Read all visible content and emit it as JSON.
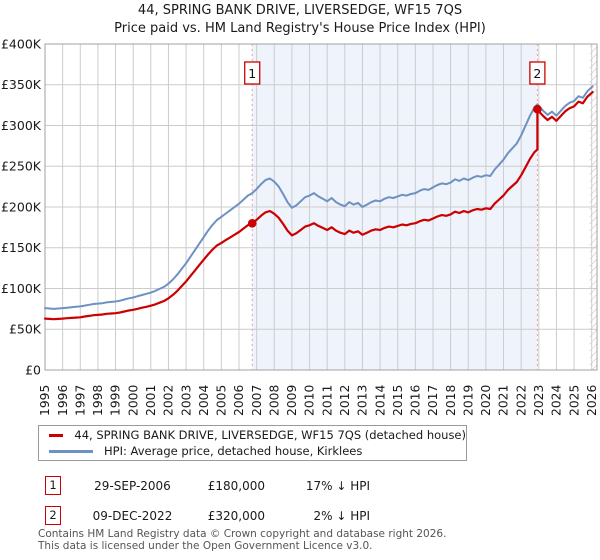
{
  "title": "44, SPRING BANK DRIVE, LIVERSEDGE, WF15 7QS",
  "subtitle": "Price paid vs. HM Land Registry's House Price Index (HPI)",
  "legend": {
    "items": [
      {
        "label": "44, SPRING BANK DRIVE, LIVERSEDGE, WF15 7QS (detached house)",
        "color": "#cc0000"
      },
      {
        "label": "HPI: Average price, detached house, Kirklees",
        "color": "#6d92c2"
      }
    ]
  },
  "transactions": [
    {
      "num": "1",
      "date": "29-SEP-2006",
      "price": "£180,000",
      "delta": "17% ↓ HPI"
    },
    {
      "num": "2",
      "date": "09-DEC-2022",
      "price": "£320,000",
      "delta": "2% ↓ HPI"
    }
  ],
  "footer": {
    "line1": "Contains HM Land Registry data © Crown copyright and database right 2026.",
    "line2": "This data is licensed under the Open Government Licence v3.0."
  },
  "chart_data": {
    "type": "line",
    "x_range": [
      1995,
      2026.3
    ],
    "ylim": [
      0,
      400
    ],
    "y_unit": "GBP thousands",
    "grid": true,
    "legend_position": "bottom",
    "colors": {
      "grid": "#cccccc",
      "border": "#a0a0a0",
      "shade": "#eff3fb",
      "hatch": "#bdbdbd",
      "marker_line": "#f29c9c",
      "marker_box": "#cc0000"
    },
    "y_ticks": [
      [
        0,
        "£0"
      ],
      [
        50,
        "£50K"
      ],
      [
        100,
        "£100K"
      ],
      [
        150,
        "£150K"
      ],
      [
        200,
        "£200K"
      ],
      [
        250,
        "£250K"
      ],
      [
        300,
        "£300K"
      ],
      [
        350,
        "£350K"
      ],
      [
        400,
        "£400K"
      ]
    ],
    "x_ticks": [
      1995,
      1996,
      1997,
      1998,
      1999,
      2000,
      2001,
      2002,
      2003,
      2004,
      2005,
      2006,
      2007,
      2008,
      2009,
      2010,
      2011,
      2012,
      2013,
      2014,
      2015,
      2016,
      2017,
      2018,
      2019,
      2020,
      2021,
      2022,
      2023,
      2024,
      2025,
      2026
    ],
    "shaded_region": {
      "from": 2006.75,
      "to": 2022.92
    },
    "hatched_region": {
      "from": 2025.88,
      "to": 2026.3
    },
    "sale_markers": [
      {
        "label": "1",
        "x": 2006.75,
        "value": 180
      },
      {
        "label": "2",
        "x": 2022.92,
        "value": 320
      }
    ],
    "series": [
      {
        "name": "HPI: Average price, detached house, Kirklees",
        "color": "#6d92c2",
        "width": 2,
        "data_name": "hpi-line",
        "points": [
          [
            1995,
            76
          ],
          [
            1995.25,
            75.5
          ],
          [
            1995.5,
            75
          ],
          [
            1995.75,
            75.5
          ],
          [
            1996,
            76
          ],
          [
            1996.25,
            76.5
          ],
          [
            1996.5,
            77
          ],
          [
            1996.75,
            77.5
          ],
          [
            1997,
            78
          ],
          [
            1997.25,
            79
          ],
          [
            1997.5,
            80
          ],
          [
            1997.75,
            81
          ],
          [
            1998,
            81.5
          ],
          [
            1998.25,
            82
          ],
          [
            1998.5,
            83
          ],
          [
            1998.75,
            83.5
          ],
          [
            1999,
            84
          ],
          [
            1999.25,
            85
          ],
          [
            1999.5,
            86.5
          ],
          [
            1999.75,
            88
          ],
          [
            2000,
            89
          ],
          [
            2000.25,
            90.5
          ],
          [
            2000.5,
            92
          ],
          [
            2000.75,
            93.5
          ],
          [
            2001,
            95
          ],
          [
            2001.25,
            97
          ],
          [
            2001.5,
            99.5
          ],
          [
            2001.75,
            102
          ],
          [
            2002,
            106
          ],
          [
            2002.25,
            111
          ],
          [
            2002.5,
            117
          ],
          [
            2002.75,
            124
          ],
          [
            2003,
            131
          ],
          [
            2003.25,
            139
          ],
          [
            2003.5,
            147
          ],
          [
            2003.75,
            155
          ],
          [
            2004,
            163
          ],
          [
            2004.25,
            171
          ],
          [
            2004.5,
            178
          ],
          [
            2004.75,
            184
          ],
          [
            2005,
            188
          ],
          [
            2005.25,
            192
          ],
          [
            2005.5,
            196
          ],
          [
            2005.75,
            200
          ],
          [
            2006,
            204
          ],
          [
            2006.25,
            209
          ],
          [
            2006.5,
            214
          ],
          [
            2006.75,
            217
          ],
          [
            2007,
            222
          ],
          [
            2007.25,
            228
          ],
          [
            2007.5,
            233
          ],
          [
            2007.75,
            235
          ],
          [
            2008,
            231
          ],
          [
            2008.25,
            225
          ],
          [
            2008.5,
            216
          ],
          [
            2008.75,
            206
          ],
          [
            2009,
            199
          ],
          [
            2009.25,
            202
          ],
          [
            2009.5,
            207
          ],
          [
            2009.75,
            212
          ],
          [
            2010,
            214
          ],
          [
            2010.25,
            217
          ],
          [
            2010.5,
            213
          ],
          [
            2010.75,
            210
          ],
          [
            2011,
            207
          ],
          [
            2011.25,
            211
          ],
          [
            2011.5,
            206
          ],
          [
            2011.75,
            203
          ],
          [
            2012,
            201
          ],
          [
            2012.25,
            206
          ],
          [
            2012.5,
            203
          ],
          [
            2012.75,
            205
          ],
          [
            2013,
            200
          ],
          [
            2013.25,
            203
          ],
          [
            2013.5,
            206
          ],
          [
            2013.75,
            208
          ],
          [
            2014,
            207
          ],
          [
            2014.25,
            210
          ],
          [
            2014.5,
            212
          ],
          [
            2014.75,
            211
          ],
          [
            2015,
            213
          ],
          [
            2015.25,
            215
          ],
          [
            2015.5,
            214
          ],
          [
            2015.75,
            216
          ],
          [
            2016,
            217
          ],
          [
            2016.25,
            220
          ],
          [
            2016.5,
            222
          ],
          [
            2016.75,
            221
          ],
          [
            2017,
            224
          ],
          [
            2017.25,
            227
          ],
          [
            2017.5,
            229
          ],
          [
            2017.75,
            228
          ],
          [
            2018,
            230
          ],
          [
            2018.25,
            234
          ],
          [
            2018.5,
            232
          ],
          [
            2018.75,
            235
          ],
          [
            2019,
            233
          ],
          [
            2019.25,
            236
          ],
          [
            2019.5,
            238
          ],
          [
            2019.75,
            237
          ],
          [
            2020,
            239
          ],
          [
            2020.25,
            238
          ],
          [
            2020.5,
            246
          ],
          [
            2020.75,
            252
          ],
          [
            2021,
            258
          ],
          [
            2021.25,
            266
          ],
          [
            2021.5,
            272
          ],
          [
            2021.75,
            278
          ],
          [
            2022,
            288
          ],
          [
            2022.25,
            300
          ],
          [
            2022.5,
            312
          ],
          [
            2022.75,
            322
          ],
          [
            2022.92,
            326
          ],
          [
            2023,
            324
          ],
          [
            2023.25,
            318
          ],
          [
            2023.5,
            313
          ],
          [
            2023.75,
            317
          ],
          [
            2024,
            312
          ],
          [
            2024.25,
            318
          ],
          [
            2024.5,
            324
          ],
          [
            2024.75,
            328
          ],
          [
            2025,
            330
          ],
          [
            2025.25,
            336
          ],
          [
            2025.5,
            334
          ],
          [
            2025.75,
            342
          ],
          [
            2026.05,
            348
          ]
        ]
      },
      {
        "name": "44, SPRING BANK DRIVE, LIVERSEDGE, WF15 7QS (detached house)",
        "color": "#cc0000",
        "width": 2.2,
        "data_name": "property-price-line",
        "points": [
          [
            1995,
            63.1
          ],
          [
            1995.25,
            62.7
          ],
          [
            1995.5,
            62.3
          ],
          [
            1995.75,
            62.7
          ],
          [
            1996,
            63.1
          ],
          [
            1996.25,
            63.5
          ],
          [
            1996.5,
            63.9
          ],
          [
            1996.75,
            64.3
          ],
          [
            1997,
            64.7
          ],
          [
            1997.25,
            65.6
          ],
          [
            1997.5,
            66.4
          ],
          [
            1997.75,
            67.2
          ],
          [
            1998,
            67.6
          ],
          [
            1998.25,
            68.1
          ],
          [
            1998.5,
            68.9
          ],
          [
            1998.75,
            69.3
          ],
          [
            1999,
            69.7
          ],
          [
            1999.25,
            70.6
          ],
          [
            1999.5,
            71.8
          ],
          [
            1999.75,
            73
          ],
          [
            2000,
            73.9
          ],
          [
            2000.25,
            75.1
          ],
          [
            2000.5,
            76.4
          ],
          [
            2000.75,
            77.6
          ],
          [
            2001,
            78.9
          ],
          [
            2001.25,
            80.5
          ],
          [
            2001.5,
            82.6
          ],
          [
            2001.75,
            84.7
          ],
          [
            2002,
            88
          ],
          [
            2002.25,
            92.1
          ],
          [
            2002.5,
            97.1
          ],
          [
            2002.75,
            102.9
          ],
          [
            2003,
            108.7
          ],
          [
            2003.25,
            115.4
          ],
          [
            2003.5,
            122
          ],
          [
            2003.75,
            128.7
          ],
          [
            2004,
            135.3
          ],
          [
            2004.25,
            141.9
          ],
          [
            2004.5,
            147.7
          ],
          [
            2004.75,
            152.7
          ],
          [
            2005,
            156
          ],
          [
            2005.25,
            159.4
          ],
          [
            2005.5,
            162.7
          ],
          [
            2005.75,
            166
          ],
          [
            2006,
            169.3
          ],
          [
            2006.25,
            173.5
          ],
          [
            2006.5,
            177.6
          ],
          [
            2006.75,
            180
          ],
          [
            2007,
            184.3
          ],
          [
            2007.25,
            189.2
          ],
          [
            2007.5,
            193.4
          ],
          [
            2007.75,
            195.1
          ],
          [
            2008,
            191.7
          ],
          [
            2008.25,
            186.8
          ],
          [
            2008.5,
            179.3
          ],
          [
            2008.75,
            171
          ],
          [
            2009,
            165.2
          ],
          [
            2009.25,
            167.7
          ],
          [
            2009.5,
            171.8
          ],
          [
            2009.75,
            176
          ],
          [
            2010,
            177.6
          ],
          [
            2010.25,
            180.1
          ],
          [
            2010.5,
            176.8
          ],
          [
            2010.75,
            174.3
          ],
          [
            2011,
            171.8
          ],
          [
            2011.25,
            175.1
          ],
          [
            2011.5,
            171
          ],
          [
            2011.75,
            168.5
          ],
          [
            2012,
            166.8
          ],
          [
            2012.25,
            171
          ],
          [
            2012.5,
            168.5
          ],
          [
            2012.75,
            170.2
          ],
          [
            2013,
            166
          ],
          [
            2013.25,
            168.5
          ],
          [
            2013.5,
            171
          ],
          [
            2013.75,
            172.6
          ],
          [
            2014,
            171.8
          ],
          [
            2014.25,
            174.3
          ],
          [
            2014.5,
            176
          ],
          [
            2014.75,
            175.1
          ],
          [
            2015,
            176.8
          ],
          [
            2015.25,
            178.5
          ],
          [
            2015.5,
            177.6
          ],
          [
            2015.75,
            179.3
          ],
          [
            2016,
            180.1
          ],
          [
            2016.25,
            182.6
          ],
          [
            2016.5,
            184.3
          ],
          [
            2016.75,
            183.4
          ],
          [
            2017,
            185.9
          ],
          [
            2017.25,
            188.4
          ],
          [
            2017.5,
            190.1
          ],
          [
            2017.75,
            189.2
          ],
          [
            2018,
            190.9
          ],
          [
            2018.25,
            194.2
          ],
          [
            2018.5,
            192.6
          ],
          [
            2018.75,
            195.1
          ],
          [
            2019,
            193.4
          ],
          [
            2019.25,
            195.9
          ],
          [
            2019.5,
            197.5
          ],
          [
            2019.75,
            196.7
          ],
          [
            2020,
            198.4
          ],
          [
            2020.25,
            197.5
          ],
          [
            2020.5,
            204.2
          ],
          [
            2020.75,
            209.2
          ],
          [
            2021,
            214.1
          ],
          [
            2021.25,
            220.8
          ],
          [
            2021.5,
            225.8
          ],
          [
            2021.75,
            230.7
          ],
          [
            2022,
            239
          ],
          [
            2022.25,
            249
          ],
          [
            2022.5,
            259
          ],
          [
            2022.75,
            267.3
          ],
          [
            2022.92,
            270.6
          ],
          [
            2022.92,
            320
          ],
          [
            2023,
            317.5
          ],
          [
            2023.25,
            311.6
          ],
          [
            2023.5,
            306.7
          ],
          [
            2023.75,
            310.7
          ],
          [
            2024,
            305.8
          ],
          [
            2024.25,
            311.6
          ],
          [
            2024.5,
            317.5
          ],
          [
            2024.75,
            321.4
          ],
          [
            2025,
            323.4
          ],
          [
            2025.25,
            329.3
          ],
          [
            2025.5,
            327.3
          ],
          [
            2025.75,
            335.2
          ],
          [
            2026.05,
            341
          ]
        ]
      }
    ]
  }
}
